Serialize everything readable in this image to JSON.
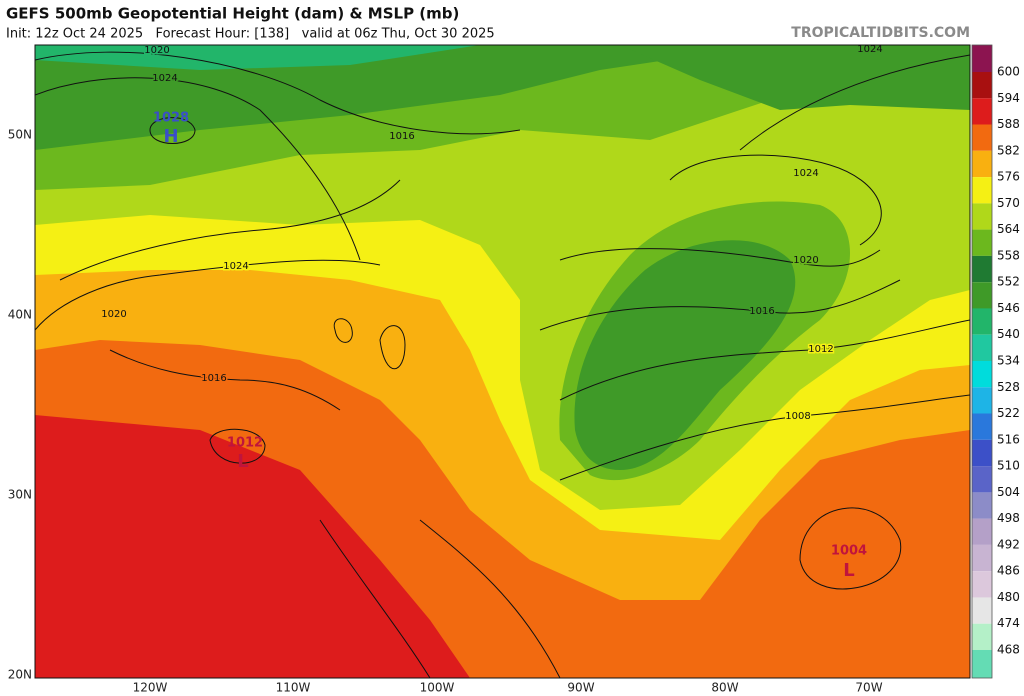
{
  "header": {
    "title": "GEFS 500mb Geopotential Height (dam) & MSLP (mb)",
    "subtitle": "Init: 12z Oct 24 2025   Forecast Hour: [138]   valid at 06z Thu, Oct 30 2025",
    "watermark": "TROPICALTIDBITS.COM"
  },
  "map": {
    "lon_labels": [
      "120W",
      "110W",
      "100W",
      "90W",
      "80W",
      "70W"
    ],
    "lat_labels": [
      "50N",
      "40N",
      "30N",
      "20N"
    ],
    "centers": [
      {
        "label": "H",
        "pressure": 1028
      },
      {
        "label": "L",
        "pressure": 1012
      },
      {
        "label": "L",
        "pressure": 1004
      }
    ],
    "isobar_labels": [
      1020,
      1024,
      1016,
      1024,
      1020,
      1016,
      1024,
      1020,
      1016,
      1012,
      1008,
      1024
    ]
  },
  "colorbar": {
    "labels": [
      600,
      594,
      588,
      582,
      576,
      570,
      564,
      558,
      552,
      546,
      540,
      534,
      528,
      522,
      516,
      510,
      504,
      498,
      492,
      486,
      480,
      474,
      468
    ]
  }
}
